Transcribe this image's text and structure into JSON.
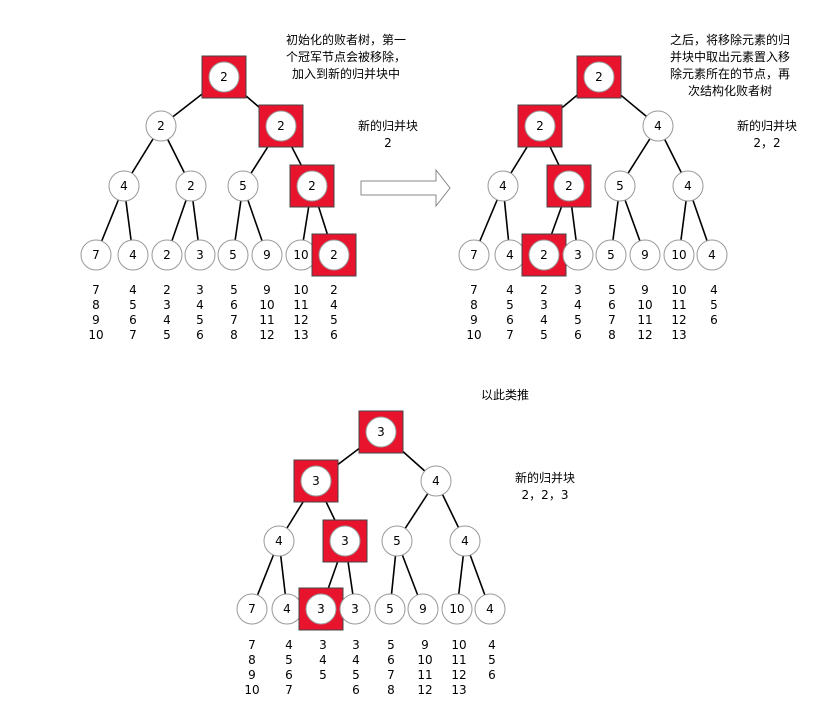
{
  "trees": [
    {
      "id": "tree1",
      "nodes": [
        {
          "id": "r",
          "v": "2",
          "hl": true
        },
        {
          "id": "a",
          "v": "2"
        },
        {
          "id": "b",
          "v": "2",
          "hl": true
        },
        {
          "id": "c",
          "v": "4"
        },
        {
          "id": "d",
          "v": "2"
        },
        {
          "id": "e",
          "v": "5"
        },
        {
          "id": "f",
          "v": "2",
          "hl": true
        },
        {
          "id": "l1",
          "v": "7"
        },
        {
          "id": "l2",
          "v": "4"
        },
        {
          "id": "l3",
          "v": "2"
        },
        {
          "id": "l4",
          "v": "3"
        },
        {
          "id": "l5",
          "v": "5"
        },
        {
          "id": "l6",
          "v": "9"
        },
        {
          "id": "l7",
          "v": "10"
        },
        {
          "id": "l8",
          "v": "2",
          "hl": true
        }
      ],
      "lists": [
        [
          "7",
          "8",
          "9",
          "10"
        ],
        [
          "4",
          "5",
          "6",
          "7"
        ],
        [
          "2",
          "3",
          "4",
          "5"
        ],
        [
          "3",
          "4",
          "5",
          "6"
        ],
        [
          "5",
          "6",
          "7",
          "8"
        ],
        [
          "9",
          "10",
          "11",
          "12"
        ],
        [
          "10",
          "11",
          "12",
          "13"
        ],
        [
          "2",
          "4",
          "5",
          "6"
        ]
      ]
    },
    {
      "id": "tree2",
      "nodes": [
        {
          "id": "r",
          "v": "2",
          "hl": true
        },
        {
          "id": "a",
          "v": "2",
          "hl": true
        },
        {
          "id": "b",
          "v": "4"
        },
        {
          "id": "c",
          "v": "4"
        },
        {
          "id": "d",
          "v": "2",
          "hl": true
        },
        {
          "id": "e",
          "v": "5"
        },
        {
          "id": "f",
          "v": "4"
        },
        {
          "id": "l1",
          "v": "7"
        },
        {
          "id": "l2",
          "v": "4"
        },
        {
          "id": "l3",
          "v": "2",
          "hl": true
        },
        {
          "id": "l4",
          "v": "3"
        },
        {
          "id": "l5",
          "v": "5"
        },
        {
          "id": "l6",
          "v": "9"
        },
        {
          "id": "l7",
          "v": "10"
        },
        {
          "id": "l8",
          "v": "4"
        }
      ],
      "lists": [
        [
          "7",
          "8",
          "9",
          "10"
        ],
        [
          "4",
          "5",
          "6",
          "7"
        ],
        [
          "2",
          "3",
          "4",
          "5"
        ],
        [
          "3",
          "4",
          "5",
          "6"
        ],
        [
          "5",
          "6",
          "7",
          "8"
        ],
        [
          "9",
          "10",
          "11",
          "12"
        ],
        [
          "10",
          "11",
          "12",
          "13"
        ],
        [
          "4",
          "5",
          "6"
        ]
      ]
    },
    {
      "id": "tree3",
      "nodes": [
        {
          "id": "r",
          "v": "3",
          "hl": true
        },
        {
          "id": "a",
          "v": "3",
          "hl": true
        },
        {
          "id": "b",
          "v": "4"
        },
        {
          "id": "c",
          "v": "4"
        },
        {
          "id": "d",
          "v": "3",
          "hl": true
        },
        {
          "id": "e",
          "v": "5"
        },
        {
          "id": "f",
          "v": "4"
        },
        {
          "id": "l1",
          "v": "7"
        },
        {
          "id": "l2",
          "v": "4"
        },
        {
          "id": "l3",
          "v": "3",
          "hl": true
        },
        {
          "id": "l4",
          "v": "3"
        },
        {
          "id": "l5",
          "v": "5"
        },
        {
          "id": "l6",
          "v": "9"
        },
        {
          "id": "l7",
          "v": "10"
        },
        {
          "id": "l8",
          "v": "4"
        }
      ],
      "lists": [
        [
          "7",
          "8",
          "9",
          "10"
        ],
        [
          "4",
          "5",
          "6",
          "7"
        ],
        [
          "3",
          "4",
          "5"
        ],
        [
          "3",
          "4",
          "5",
          "6"
        ],
        [
          "5",
          "6",
          "7",
          "8"
        ],
        [
          "9",
          "10",
          "11",
          "12"
        ],
        [
          "10",
          "11",
          "12",
          "13"
        ],
        [
          "4",
          "5",
          "6"
        ]
      ]
    }
  ],
  "notes": {
    "tree1_desc": "初始化的败者树，第一\n个冠军节点会被移除，\n加入到新的归并块中",
    "tree1_block": "新的归并块\n2",
    "tree2_desc": "之后，将移除元素的归\n并块中取出元素置入移\n除元素所在的节点，再\n次结构化败者树",
    "tree2_block": "新的归并块\n2，2",
    "tree3_title": "以此类推",
    "tree3_block": "新的归并块\n2，2，3"
  },
  "colors": {
    "highlight": "#e8142e",
    "edge": "#000000",
    "node_border": "#999999",
    "arrow_border": "#888888"
  }
}
